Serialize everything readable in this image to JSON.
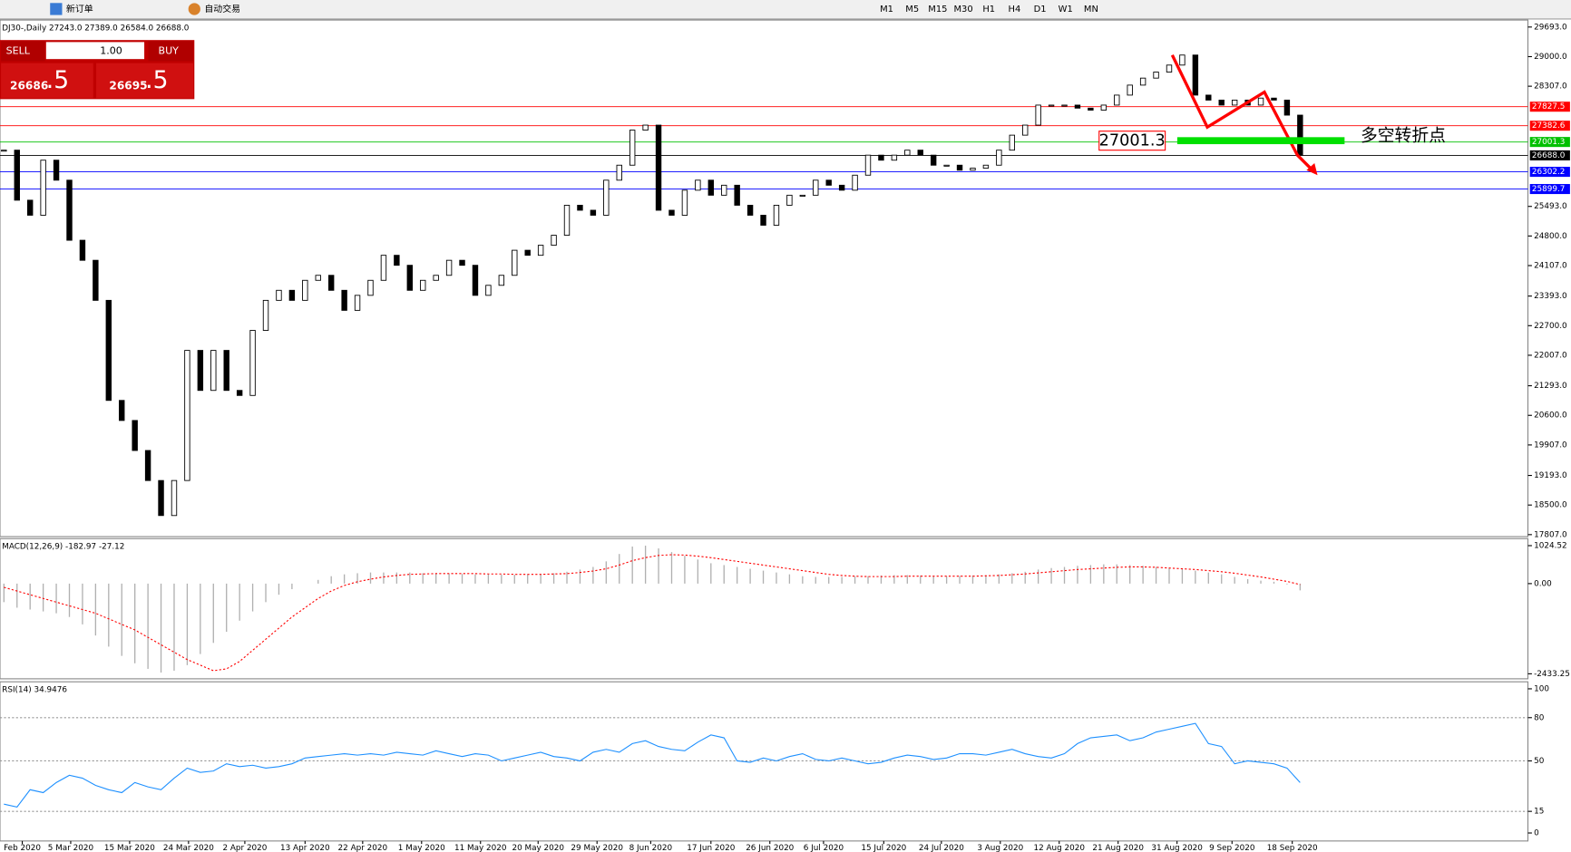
{
  "ui": {
    "toolbar": {
      "new_order": "新订单",
      "auto_trade": "自动交易",
      "timeframes": [
        "M1",
        "M5",
        "M15",
        "M30",
        "H1",
        "H4",
        "D1",
        "W1",
        "MN"
      ]
    },
    "trade_panel": {
      "sell": "SELL",
      "buy": "BUY",
      "lots": "1.00",
      "bid_main": "26686",
      "bid_frac": ".5",
      "ask_main": "26695",
      "ask_frac": ".5"
    }
  },
  "chart_data": [
    {
      "type": "candlestick",
      "title": "DJ30-,Daily 27243.0 27389.0 26584.0 26688.0",
      "up_color": "#ffffff",
      "down_color": "#000000",
      "values": [
        26810,
        25638,
        25286,
        26575,
        26107,
        24700,
        24231,
        23293,
        20950,
        20480,
        19777,
        19074,
        18254,
        19074,
        22121,
        21184,
        22121,
        21184,
        21066,
        22590,
        23293,
        23528,
        23293,
        23762,
        23879,
        23528,
        23059,
        23410,
        23762,
        24348,
        24114,
        23528,
        23762,
        23879,
        24231,
        24114,
        23410,
        23645,
        23879,
        24466,
        24348,
        24583,
        24817,
        25520,
        25403,
        25286,
        26107,
        26458,
        27279,
        27396,
        25403,
        25286,
        25872,
        26107,
        25755,
        25989,
        25520,
        25286,
        25052,
        25520,
        25755,
        25755,
        26107,
        25989,
        25872,
        26224,
        26693,
        26575,
        26693,
        26810,
        26693,
        26458,
        26458,
        26341,
        26388,
        26458,
        26810,
        27161,
        27396,
        27865,
        27865,
        27865,
        27794,
        27747,
        27865,
        28099,
        28333,
        28497,
        28638,
        28802,
        29037,
        28099,
        27982,
        27865,
        27982,
        27865,
        28029,
        27982,
        27630,
        26688
      ],
      "xlim": [
        -0.3,
        116.4
      ],
      "xticks": [
        {
          "value": 1.4,
          "label": "Feb 2020"
        },
        {
          "value": 5.1,
          "label": "5 Mar 2020"
        },
        {
          "value": 9.6,
          "label": "15 Mar 2020"
        },
        {
          "value": 14.1,
          "label": "24 Mar 2020"
        },
        {
          "value": 18.4,
          "label": "2 Apr 2020"
        },
        {
          "value": 23.0,
          "label": "13 Apr 2020"
        },
        {
          "value": 27.4,
          "label": "22 Apr 2020"
        },
        {
          "value": 31.9,
          "label": "1 May 2020"
        },
        {
          "value": 36.4,
          "label": "11 May 2020"
        },
        {
          "value": 40.8,
          "label": "20 May 2020"
        },
        {
          "value": 45.3,
          "label": "29 May 2020"
        },
        {
          "value": 49.4,
          "label": "8 Jun 2020"
        },
        {
          "value": 54.0,
          "label": "17 Jun 2020"
        },
        {
          "value": 58.5,
          "label": "26 Jun 2020"
        },
        {
          "value": 62.6,
          "label": "6 Jul 2020"
        },
        {
          "value": 67.2,
          "label": "15 Jul 2020"
        },
        {
          "value": 71.6,
          "label": "24 Jul 2020"
        },
        {
          "value": 76.1,
          "label": "3 Aug 2020"
        },
        {
          "value": 80.6,
          "label": "12 Aug 2020"
        },
        {
          "value": 85.1,
          "label": "21 Aug 2020"
        },
        {
          "value": 89.6,
          "label": "31 Aug 2020"
        },
        {
          "value": 93.8,
          "label": "9 Sep 2020"
        },
        {
          "value": 98.4,
          "label": "18 Sep 2020"
        }
      ],
      "ylim": [
        17807,
        29693
      ],
      "yticks": [
        {
          "value": 29693,
          "label": "29693.0"
        },
        {
          "value": 29000,
          "label": "29000.0"
        },
        {
          "value": 28307,
          "label": "28307.0"
        },
        {
          "value": 25493,
          "label": "25493.0"
        },
        {
          "value": 24800,
          "label": "24800.0"
        },
        {
          "value": 24107,
          "label": "24107.0"
        },
        {
          "value": 23393,
          "label": "23393.0"
        },
        {
          "value": 22700,
          "label": "22700.0"
        },
        {
          "value": 22007,
          "label": "22007.0"
        },
        {
          "value": 21293,
          "label": "21293.0"
        },
        {
          "value": 20600,
          "label": "20600.0"
        },
        {
          "value": 19907,
          "label": "19907.0"
        },
        {
          "value": 19193,
          "label": "19193.0"
        },
        {
          "value": 18500,
          "label": "18500.0"
        },
        {
          "value": 17807,
          "label": "17807.0"
        }
      ],
      "levels": [
        {
          "value": 27827.5,
          "label": "27827.5",
          "color": "#ff0000"
        },
        {
          "value": 27382.6,
          "label": "27382.6",
          "color": "#ff0000"
        },
        {
          "value": 27001.3,
          "label": "27001.3",
          "color": "#00c000"
        },
        {
          "value": 26688,
          "label": "26688.0",
          "color": "#000000"
        },
        {
          "value": 26302.2,
          "label": "26302.2",
          "color": "#0000ff"
        },
        {
          "value": 25899.7,
          "label": "25899.7",
          "color": "#0000ff"
        }
      ],
      "annotation_box": "27001.3",
      "annotation": "多空转折点"
    },
    {
      "type": "macd",
      "title": "MACD(12,26,9) -182.97 -27.12",
      "hist_color": "#b0b0b0",
      "signal_color": "#ff0000",
      "values": [
        -500,
        -650,
        -700,
        -750,
        -800,
        -900,
        -1100,
        -1400,
        -1700,
        -1950,
        -2150,
        -2300,
        -2400,
        -2350,
        -2200,
        -1900,
        -1600,
        -1300,
        -1000,
        -750,
        -500,
        -300,
        -150,
        0,
        100,
        200,
        250,
        280,
        300,
        300,
        300,
        300,
        280,
        280,
        270,
        260,
        250,
        250,
        240,
        240,
        250,
        260,
        280,
        320,
        380,
        450,
        600,
        800,
        1000,
        1024,
        950,
        850,
        750,
        650,
        550,
        500,
        450,
        400,
        350,
        300,
        250,
        200,
        180,
        180,
        180,
        200,
        200,
        220,
        230,
        230,
        220,
        200,
        200,
        210,
        220,
        230,
        250,
        280,
        320,
        380,
        420,
        450,
        480,
        500,
        520,
        520,
        500,
        480,
        450,
        420,
        400,
        350,
        300,
        250,
        180,
        120,
        80,
        50,
        -20,
        -183
      ],
      "signal": [
        -100,
        -200,
        -300,
        -400,
        -500,
        -600,
        -700,
        -800,
        -950,
        -1100,
        -1250,
        -1450,
        -1650,
        -1850,
        -2050,
        -2200,
        -2350,
        -2300,
        -2100,
        -1800,
        -1500,
        -1200,
        -900,
        -650,
        -400,
        -200,
        -50,
        50,
        120,
        180,
        220,
        250,
        260,
        270,
        270,
        270,
        270,
        260,
        260,
        250,
        250,
        250,
        260,
        270,
        300,
        340,
        400,
        500,
        620,
        700,
        760,
        780,
        770,
        740,
        700,
        650,
        600,
        550,
        500,
        450,
        400,
        350,
        300,
        250,
        220,
        200,
        190,
        190,
        190,
        200,
        200,
        200,
        200,
        200,
        200,
        210,
        220,
        240,
        260,
        290,
        320,
        350,
        380,
        400,
        420,
        440,
        450,
        450,
        440,
        420,
        400,
        380,
        350,
        320,
        280,
        230,
        180,
        120,
        60,
        -27
      ],
      "ylim": [
        -2433.25,
        1024.52
      ],
      "yticks": [
        1024.52,
        {
          "value": 0,
          "label": "0.00"
        },
        -2433.25
      ]
    },
    {
      "type": "rsi",
      "title": "RSI(14) 34.9476",
      "color": "#1e90ff",
      "values": [
        20,
        18,
        30,
        28,
        35,
        40,
        38,
        33,
        30,
        28,
        35,
        32,
        30,
        38,
        45,
        42,
        43,
        48,
        46,
        47,
        45,
        46,
        48,
        52,
        53,
        54,
        55,
        54,
        55,
        54,
        56,
        55,
        54,
        57,
        55,
        53,
        55,
        54,
        50,
        52,
        54,
        56,
        53,
        52,
        50,
        56,
        58,
        56,
        62,
        64,
        60,
        58,
        57,
        63,
        68,
        66,
        50,
        49,
        52,
        50,
        53,
        55,
        51,
        50,
        52,
        50,
        48,
        49,
        52,
        54,
        53,
        51,
        52,
        55,
        55,
        54,
        56,
        58,
        55,
        53,
        52,
        55,
        62,
        66,
        67,
        68,
        64,
        66,
        70,
        72,
        74,
        76,
        62,
        60,
        48,
        50,
        49,
        48,
        45,
        35
      ],
      "ylim": [
        0,
        100
      ],
      "yticks": [
        100,
        80,
        50,
        15,
        0
      ],
      "levels": [
        80,
        50,
        15
      ]
    }
  ]
}
